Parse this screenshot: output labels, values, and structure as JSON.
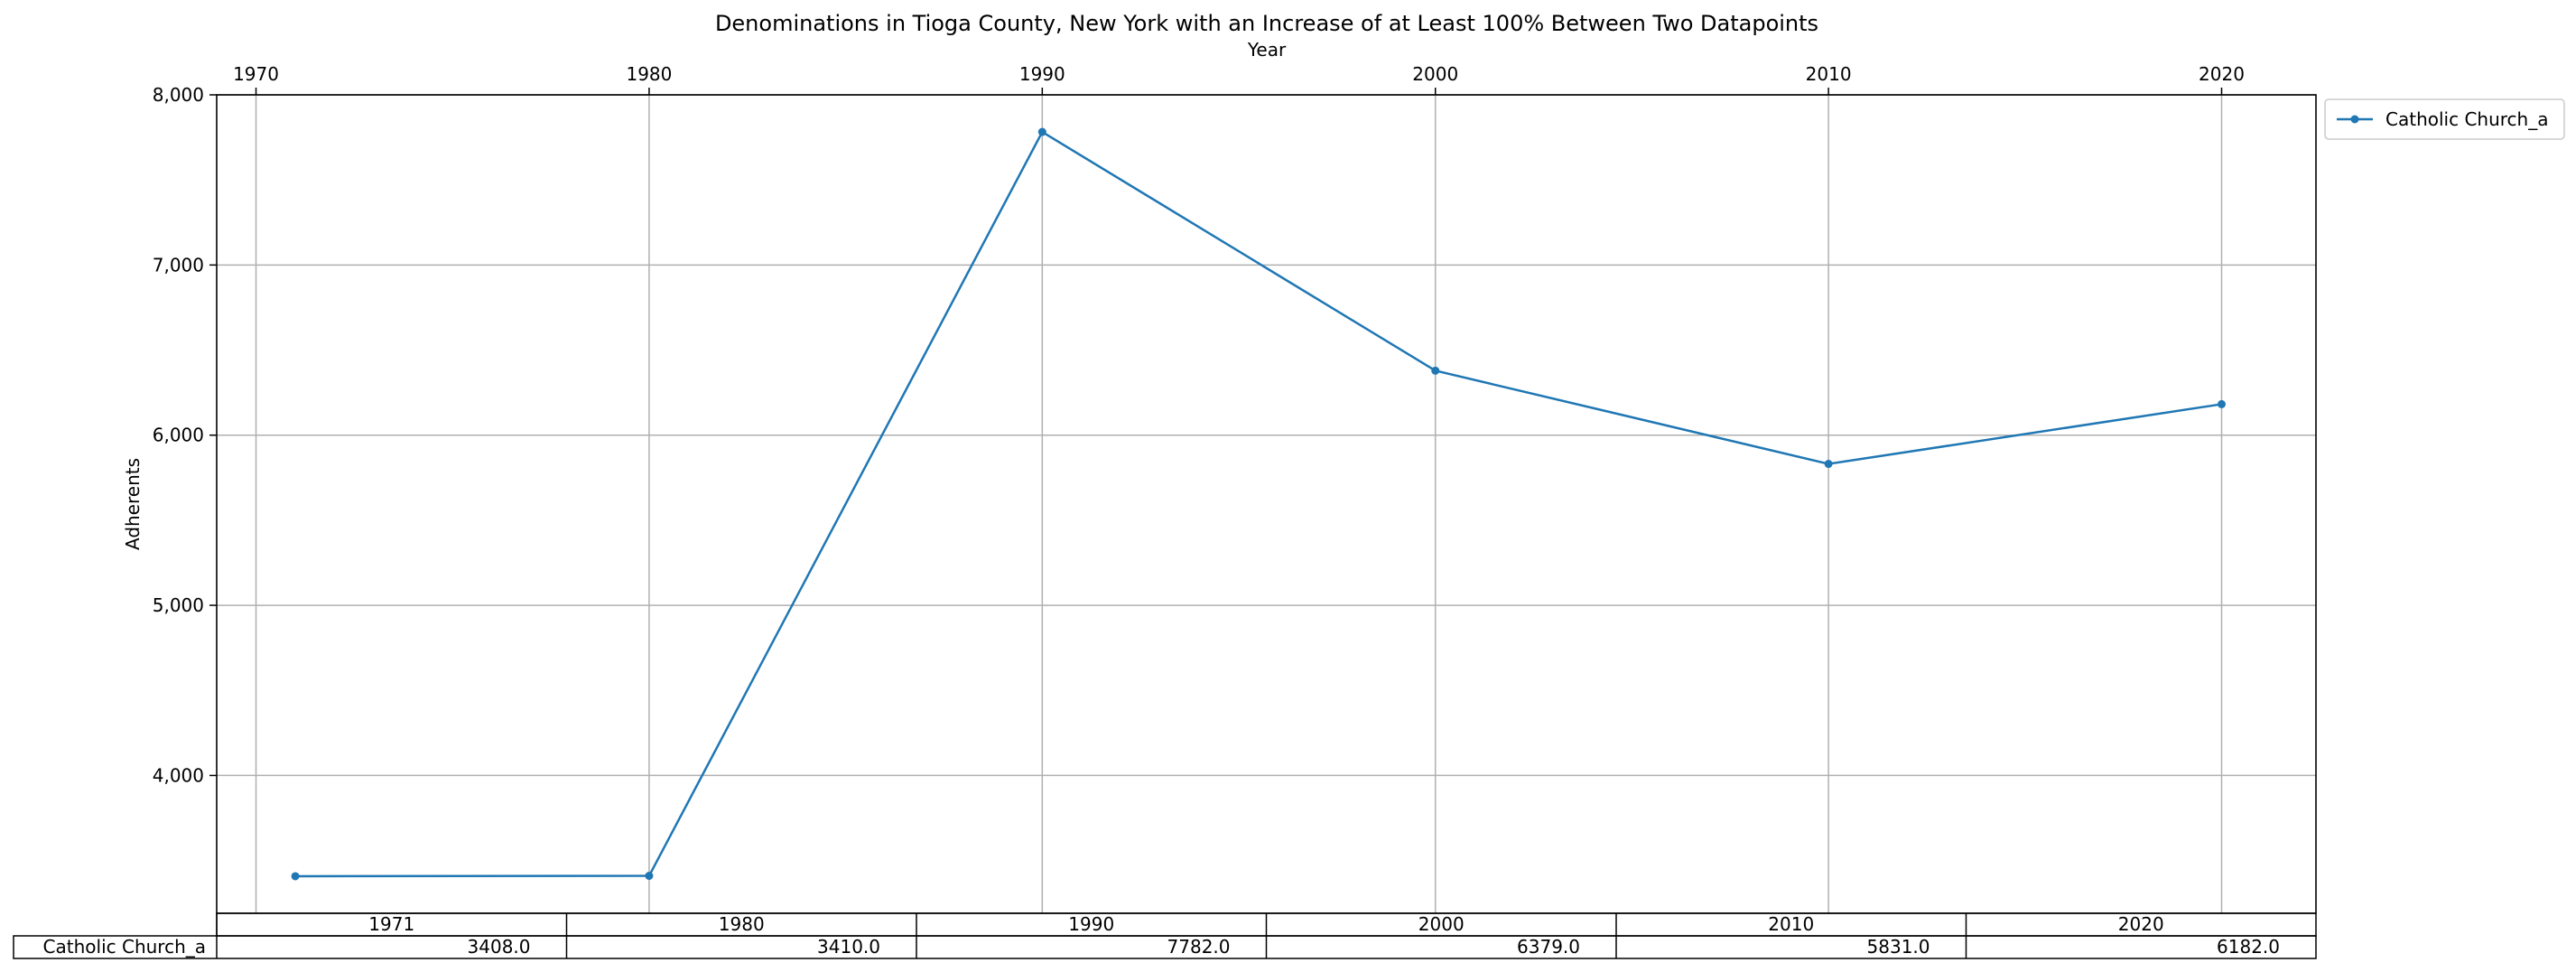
{
  "chart_data": {
    "type": "line",
    "title": "Denominations in Tioga County, New York with an Increase of at Least 100% Between Two Datapoints",
    "xlabel": "Year",
    "ylabel": "Adherents",
    "x": [
      1971,
      1980,
      1990,
      2000,
      2010,
      2020
    ],
    "series": [
      {
        "name": "Catholic Church_a",
        "values": [
          3408,
          3410,
          7782,
          6379,
          5831,
          6182
        ],
        "color": "#1f77b4"
      }
    ],
    "xlim": [
      1969.0,
      2022.4
    ],
    "ylim": [
      3190,
      8000
    ],
    "x_ticks": [
      "1970",
      "1980",
      "1990",
      "2000",
      "2010",
      "2020"
    ],
    "x_tick_values": [
      1970,
      1980,
      1990,
      2000,
      2010,
      2020
    ],
    "y_ticks": [
      "4,000",
      "5,000",
      "6,000",
      "7,000",
      "8,000"
    ],
    "y_tick_values": [
      4000,
      5000,
      6000,
      7000,
      8000
    ],
    "grid": true,
    "x_axis_position": "top",
    "legend_position": "outside top-right",
    "table": {
      "col_labels": [
        "1971",
        "1980",
        "1990",
        "2000",
        "2010",
        "2020"
      ],
      "row_label": "Catholic Church_a",
      "cells": [
        "3408.0",
        "3410.0",
        "7782.0",
        "6379.0",
        "5831.0",
        "6182.0"
      ]
    }
  }
}
